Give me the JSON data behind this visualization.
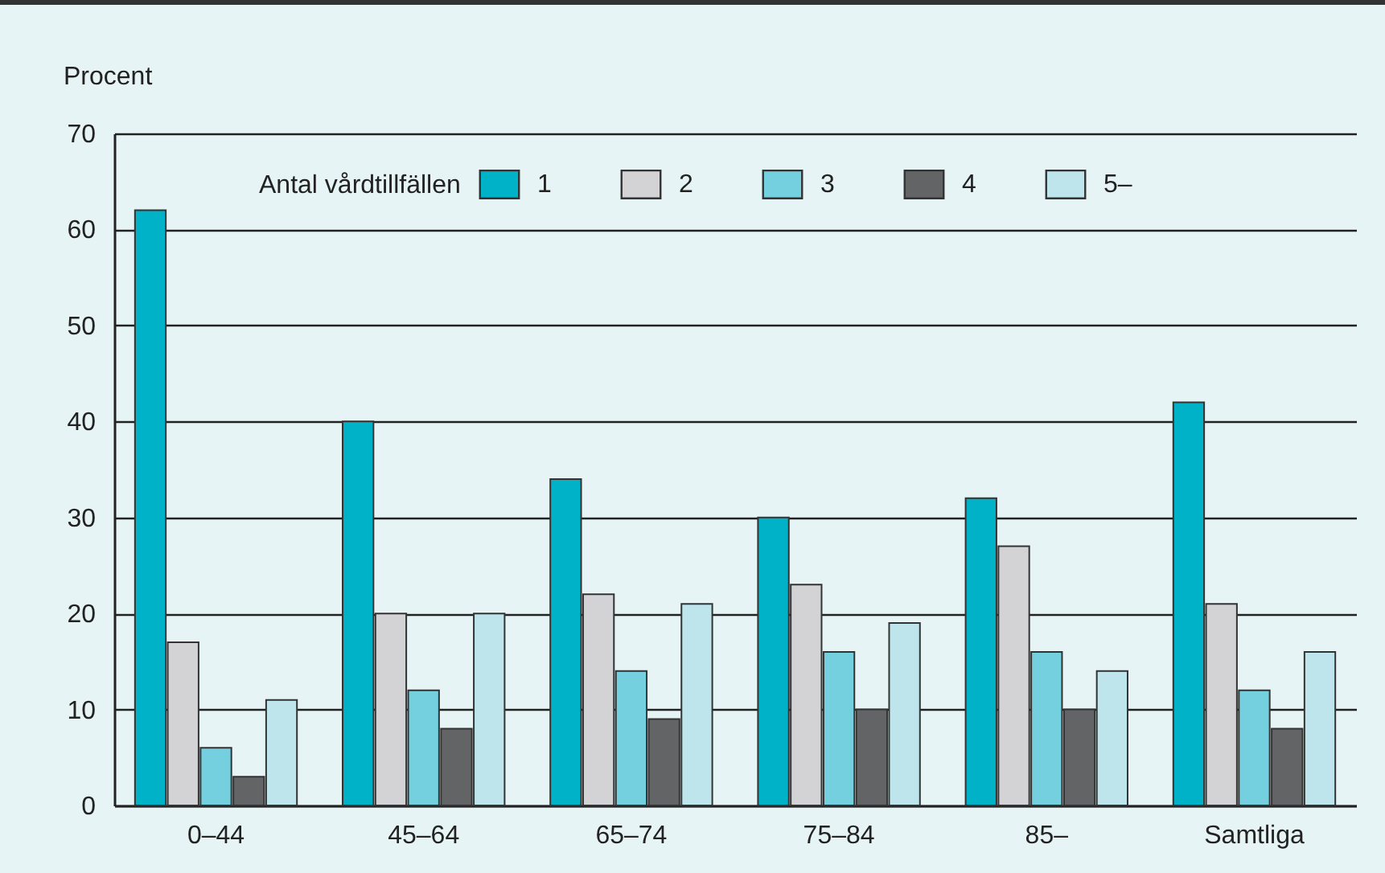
{
  "chart_data": {
    "type": "bar",
    "ylabel": "Procent",
    "legend_title": "Antal vårdtillfällen",
    "categories": [
      "0–44",
      "45–64",
      "65–74",
      "75–84",
      "85–",
      "Samtliga"
    ],
    "series": [
      {
        "name": "1",
        "color": "#00b2c8",
        "values": [
          62,
          40,
          34,
          30,
          32,
          42
        ]
      },
      {
        "name": "2",
        "color": "#d3d3d6",
        "values": [
          17,
          20,
          22,
          23,
          27,
          21
        ]
      },
      {
        "name": "3",
        "color": "#74cfdf",
        "values": [
          6,
          12,
          14,
          16,
          16,
          12
        ]
      },
      {
        "name": "4",
        "color": "#636466",
        "values": [
          3,
          8,
          9,
          10,
          10,
          8
        ]
      },
      {
        "name": "5–",
        "color": "#bde5eb",
        "values": [
          11,
          20,
          21,
          19,
          14,
          16
        ]
      }
    ],
    "ylim": [
      0,
      70
    ],
    "yticks": [
      0,
      10,
      20,
      30,
      40,
      50,
      60,
      70
    ],
    "grid": "y",
    "legend": "top"
  }
}
